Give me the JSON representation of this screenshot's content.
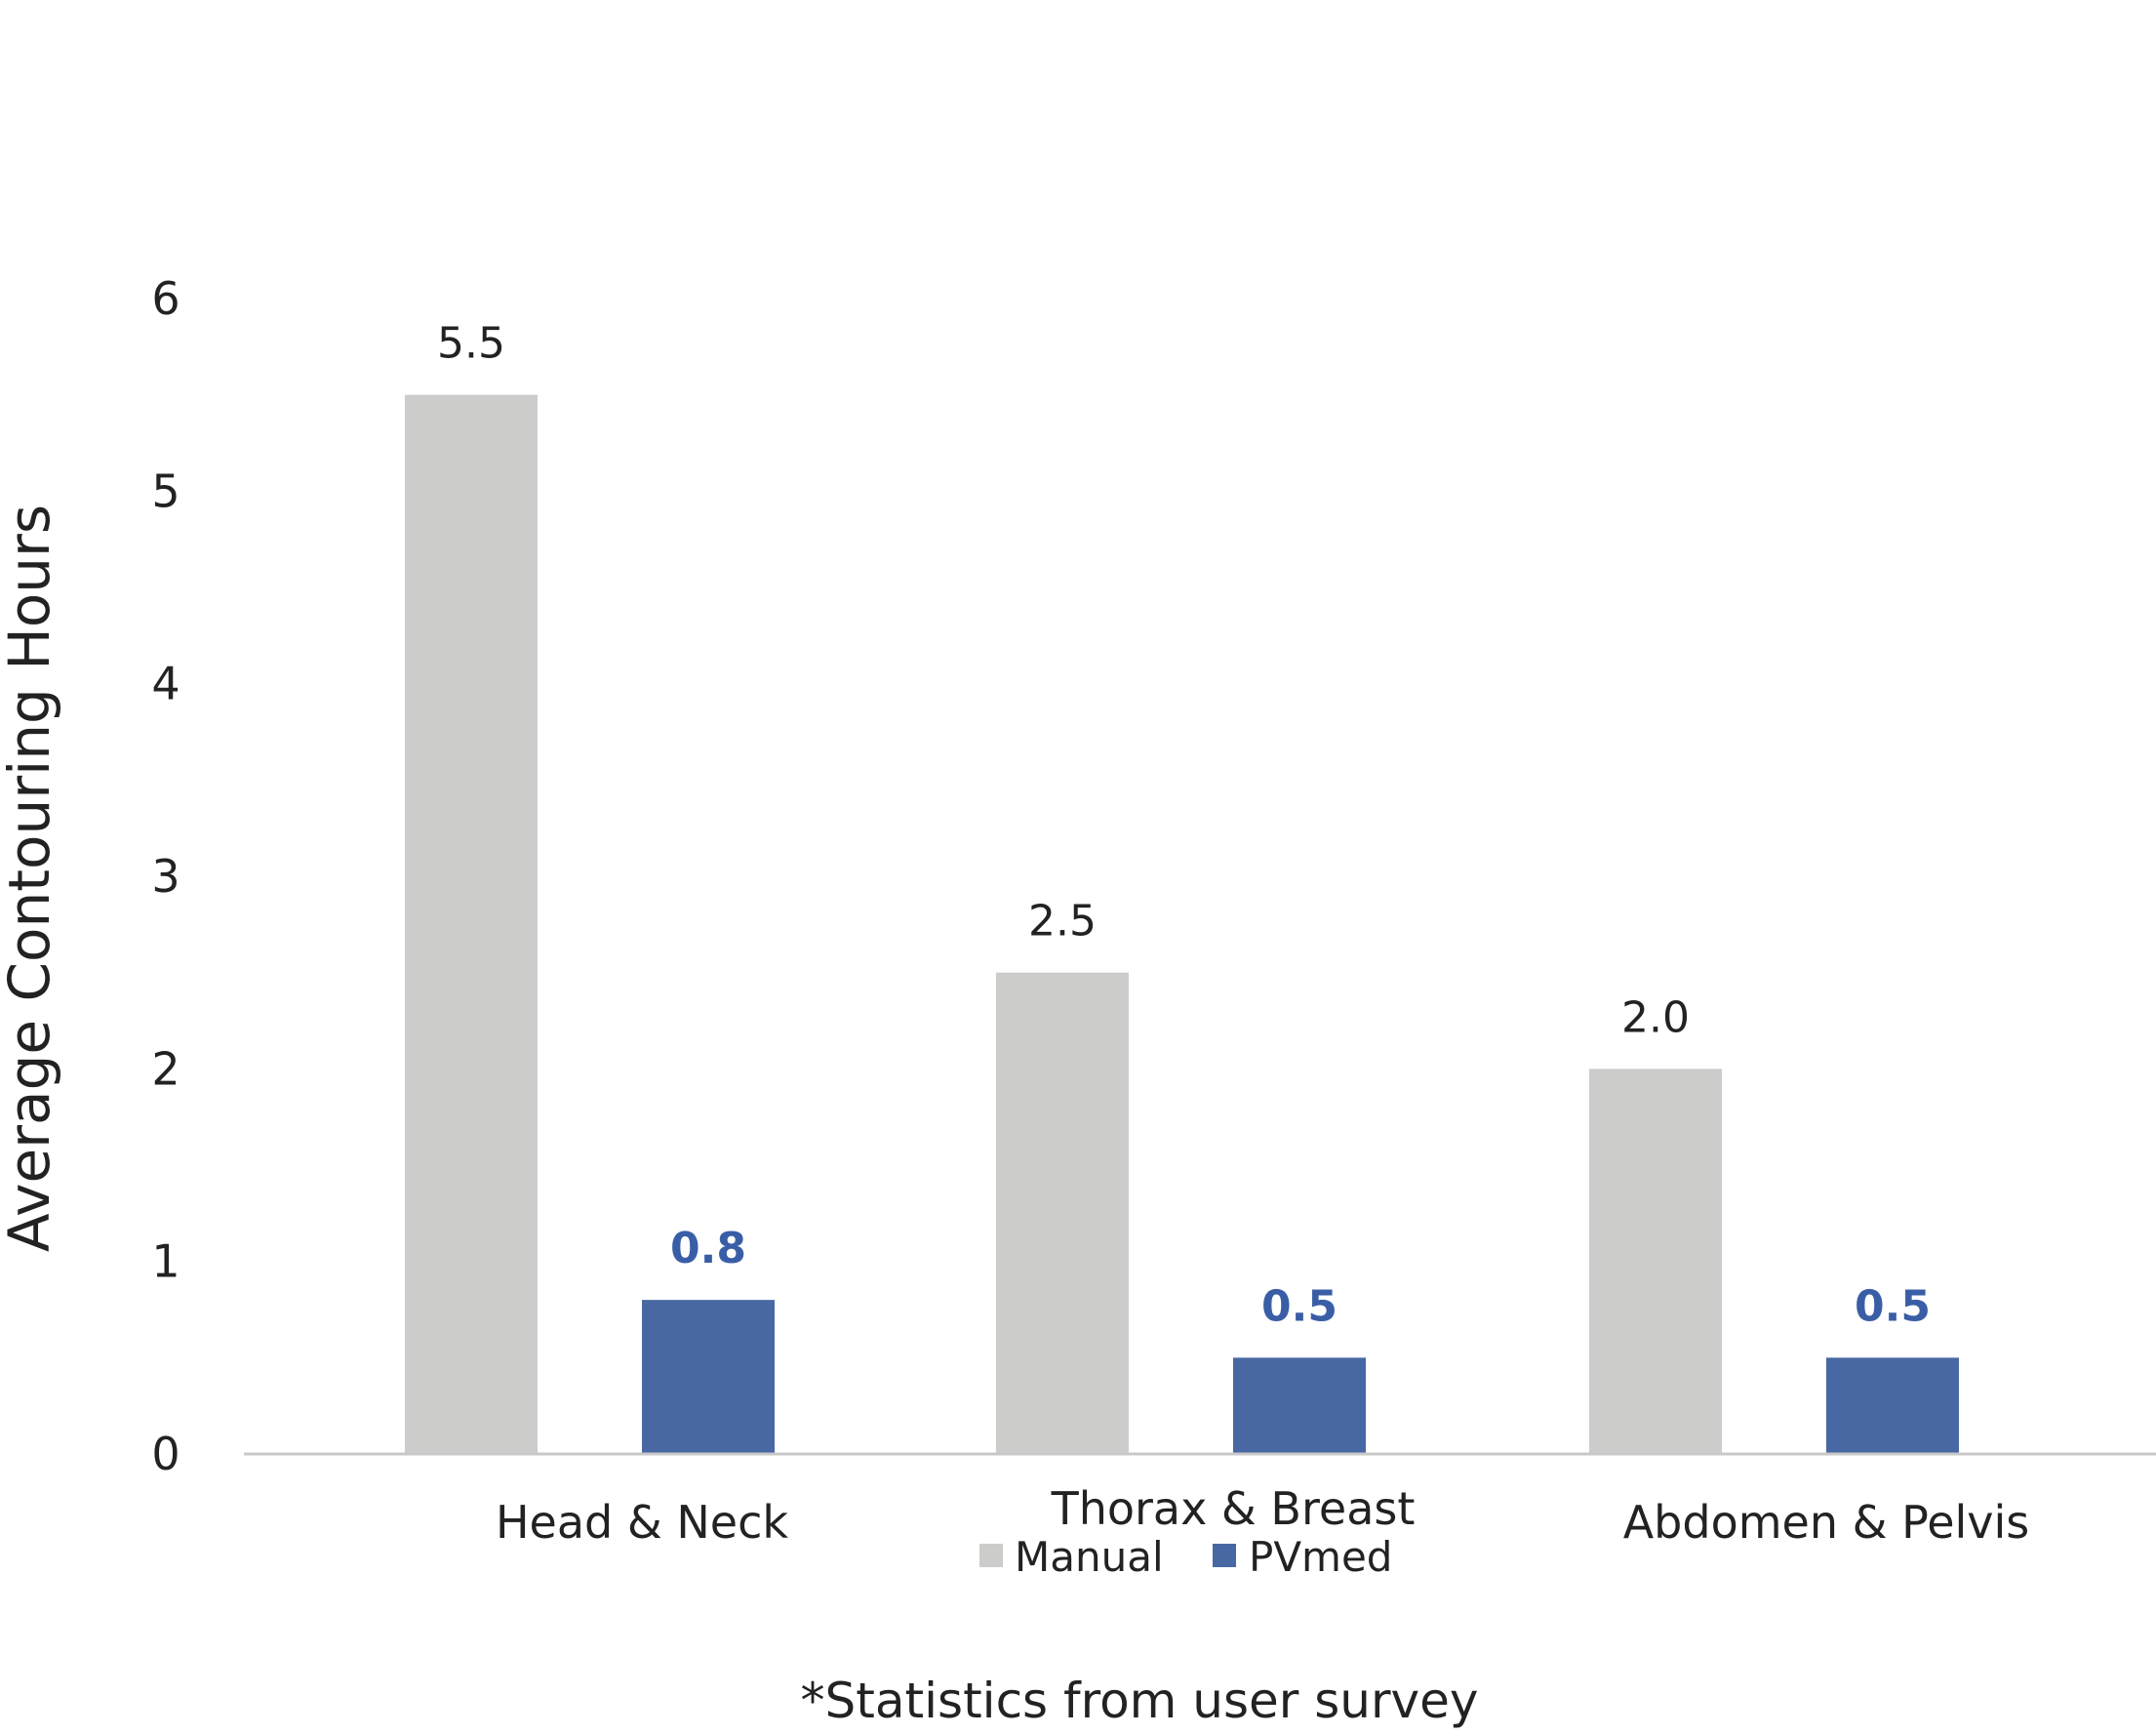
{
  "chart_data": {
    "type": "bar",
    "categories": [
      "Head & Neck",
      "Thorax & Breast",
      "Abdomen & Pelvis"
    ],
    "series": [
      {
        "name": "Manual",
        "values": [
          5.5,
          2.5,
          2.0
        ],
        "labels": [
          "5.5",
          "2.5",
          "2.0"
        ],
        "color": "#cccccb",
        "label_color": "#222222",
        "label_bold": false
      },
      {
        "name": "PVmed",
        "values": [
          0.8,
          0.5,
          0.5
        ],
        "labels": [
          "0.8",
          "0.5",
          "0.5"
        ],
        "color": "#4868a3",
        "label_color": "#3a5ea6",
        "label_bold": true
      }
    ],
    "title": "",
    "xlabel": "",
    "ylabel": "Average Contouring Hours",
    "ylim": [
      0,
      6
    ],
    "yticks": [
      "0",
      "1",
      "2",
      "3",
      "4",
      "5",
      "6"
    ],
    "grid": false,
    "legend_position": "bottom",
    "axis_color": "#c8c8c8"
  },
  "footnote": "*Statistics from user survey"
}
